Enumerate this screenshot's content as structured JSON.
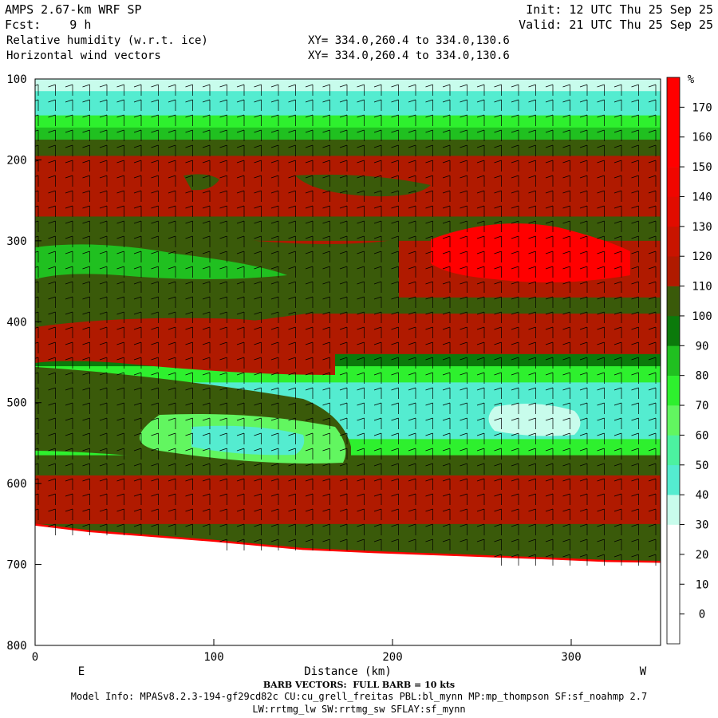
{
  "header": {
    "model_title": "AMPS 2.67-km WRF SP",
    "forecast": "Fcst:    9 h",
    "field_1": "Relative humidity (w.r.t. ice)",
    "field_2": "Horizontal wind vectors",
    "xy_1": "XY= 334.0,260.4 to 334.0,130.6",
    "xy_2": "XY= 334.0,260.4 to 334.0,130.6",
    "init": "Init: 12 UTC Thu 25 Sep 25",
    "valid": "Valid: 21 UTC Thu 25 Sep 25"
  },
  "footer": {
    "barb_note": "BARB VECTORS:  FULL BARB = 10 kts",
    "model_info_1": "Model Info: MPASv8.2.3-194-gf29cd82c CU:cu_grell_freitas PBL:bl_mynn MP:mp_thompson SF:sf_noahmp 2.7",
    "model_info_2": "LW:rrtmg_lw SW:rrtmg_sw SFLAY:sf_mynn"
  },
  "chart_data": {
    "type": "heatmap",
    "xlabel": "Distance (km)",
    "x_range": [
      0,
      350
    ],
    "x_ticks": [
      0,
      100,
      200,
      300
    ],
    "x_end_labels": {
      "left": "E",
      "right": "W"
    },
    "y_range": [
      100,
      800
    ],
    "y_ticks": [
      100,
      200,
      300,
      400,
      500,
      600,
      700,
      800
    ],
    "colorbar": {
      "unit": "%",
      "levels": [
        0,
        10,
        20,
        30,
        40,
        50,
        60,
        70,
        80,
        90,
        100,
        110,
        120,
        130,
        140,
        150,
        160,
        170
      ],
      "bands": [
        {
          "from": -10,
          "to": 0,
          "color": "#ffffff"
        },
        {
          "from": 0,
          "to": 10,
          "color": "#ffffff"
        },
        {
          "from": 10,
          "to": 20,
          "color": "#ffffff"
        },
        {
          "from": 20,
          "to": 30,
          "color": "#ffffff"
        },
        {
          "from": 30,
          "to": 40,
          "color": "#c8fcec"
        },
        {
          "from": 40,
          "to": 50,
          "color": "#54ecd0"
        },
        {
          "from": 50,
          "to": 60,
          "color": "#4cf2a0"
        },
        {
          "from": 60,
          "to": 70,
          "color": "#62f660"
        },
        {
          "from": 70,
          "to": 80,
          "color": "#2ef02e"
        },
        {
          "from": 80,
          "to": 90,
          "color": "#20c020"
        },
        {
          "from": 90,
          "to": 100,
          "color": "#0b7a0b"
        },
        {
          "from": 100,
          "to": 110,
          "color": "#3a5a0a"
        },
        {
          "from": 110,
          "to": 120,
          "color": "#b01a00"
        },
        {
          "from": 120,
          "to": 130,
          "color": "#c81400"
        },
        {
          "from": 130,
          "to": 140,
          "color": "#e10c00"
        },
        {
          "from": 140,
          "to": 150,
          "color": "#f00600"
        },
        {
          "from": 150,
          "to": 160,
          "color": "#ff0000"
        },
        {
          "from": 160,
          "to": 170,
          "color": "#ff0000"
        },
        {
          "from": 170,
          "to": 180,
          "color": "#ff0000"
        }
      ]
    },
    "layers": [
      {
        "p_top": 100,
        "p_bot": 115,
        "color": "#c8fcec"
      },
      {
        "p_top": 115,
        "p_bot": 145,
        "color": "#54ecd0"
      },
      {
        "p_top": 145,
        "p_bot": 160,
        "color": "#2ef02e"
      },
      {
        "p_top": 160,
        "p_bot": 175,
        "color": "#20c020"
      },
      {
        "p_top": 175,
        "p_bot": 195,
        "color": "#3a5a0a"
      },
      {
        "p_top": 195,
        "p_bot": 270,
        "color": "#b01a00"
      },
      {
        "p_top": 270,
        "p_bot": 300,
        "color": "#3a5a0a"
      },
      {
        "p_top": 300,
        "p_bot": 370,
        "color": "#b01a00"
      },
      {
        "p_top": 370,
        "p_bot": 390,
        "color": "#3a5a0a"
      },
      {
        "p_top": 390,
        "p_bot": 440,
        "color": "#b01a00"
      },
      {
        "p_top": 440,
        "p_bot": 455,
        "color": "#0b7a0b"
      },
      {
        "p_top": 455,
        "p_bot": 475,
        "color": "#2ef02e"
      },
      {
        "p_top": 475,
        "p_bot": 545,
        "color": "#54ecd0"
      },
      {
        "p_top": 545,
        "p_bot": 565,
        "color": "#2ef02e"
      },
      {
        "p_top": 565,
        "p_bot": 590,
        "color": "#3a5a0a"
      },
      {
        "p_top": 590,
        "p_bot": 650,
        "color": "#b01a00"
      },
      {
        "p_top": 650,
        "p_bot": 700,
        "color": "#3a5a0a"
      }
    ],
    "terrain_pressure": [
      {
        "x": 0,
        "p": 652
      },
      {
        "x": 30,
        "p": 660
      },
      {
        "x": 60,
        "p": 665
      },
      {
        "x": 100,
        "p": 672
      },
      {
        "x": 150,
        "p": 682
      },
      {
        "x": 190,
        "p": 686
      },
      {
        "x": 240,
        "p": 690
      },
      {
        "x": 290,
        "p": 694
      },
      {
        "x": 320,
        "p": 697
      },
      {
        "x": 350,
        "p": 698
      }
    ]
  }
}
